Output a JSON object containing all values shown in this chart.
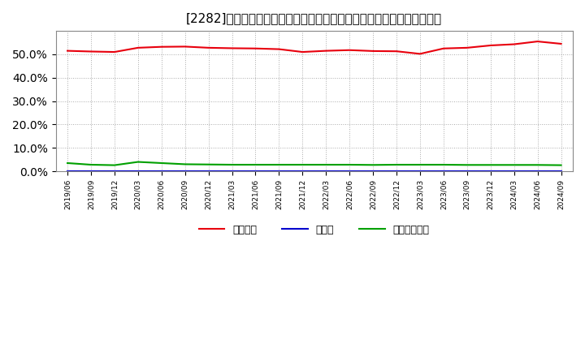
{
  "title": "[2282]　自己資本、のれん、繰延税金資産の総資産に対する比率の推移",
  "x_labels": [
    "2019/06",
    "2019/09",
    "2019/12",
    "2020/03",
    "2020/06",
    "2020/09",
    "2020/12",
    "2021/03",
    "2021/06",
    "2021/09",
    "2021/12",
    "2022/03",
    "2022/06",
    "2022/09",
    "2022/12",
    "2023/03",
    "2023/06",
    "2023/09",
    "2023/12",
    "2024/03",
    "2024/06",
    "2024/09"
  ],
  "jiko_shihon": [
    51.5,
    51.2,
    51.0,
    52.8,
    53.2,
    53.3,
    52.8,
    52.6,
    52.5,
    52.2,
    51.0,
    51.5,
    51.8,
    51.4,
    51.3,
    50.2,
    52.5,
    52.8,
    53.8,
    54.3,
    55.5,
    54.5
  ],
  "noren": [
    0.05,
    0.05,
    0.05,
    0.05,
    0.05,
    0.05,
    0.05,
    0.05,
    0.05,
    0.05,
    0.05,
    0.05,
    0.05,
    0.05,
    0.05,
    0.05,
    0.05,
    0.05,
    0.05,
    0.05,
    0.05,
    0.05
  ],
  "kuenzeicho_shisan": [
    3.5,
    2.8,
    2.6,
    4.0,
    3.5,
    3.0,
    2.9,
    2.8,
    2.8,
    2.8,
    2.8,
    2.8,
    2.8,
    2.7,
    2.8,
    2.8,
    2.8,
    2.7,
    2.7,
    2.7,
    2.7,
    2.6
  ],
  "line_color_jiko": "#e8000d",
  "line_color_noren": "#0000cd",
  "line_color_kuen": "#00a000",
  "bg_color": "#ffffff",
  "plot_bg_color": "#ffffff",
  "grid_color": "#aaaaaa",
  "title_fontsize": 11,
  "ylim": [
    0,
    60
  ],
  "yticks": [
    0,
    10,
    20,
    30,
    40,
    50
  ],
  "legend_labels": [
    "自己資本",
    "のれん",
    "繰延税金資産"
  ]
}
